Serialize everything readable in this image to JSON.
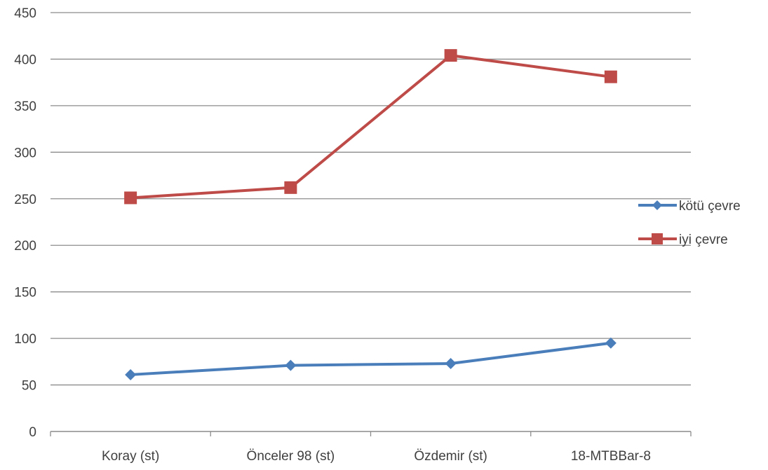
{
  "chart_data": {
    "type": "line",
    "categories": [
      "Koray (st)",
      "Önceler 98 (st)",
      "Özdemir (st)",
      "18-MTBBar-8"
    ],
    "series": [
      {
        "name": "kötü çevre",
        "values": [
          61,
          71,
          73,
          95
        ],
        "color": "#4a7ebb",
        "marker": "diamond"
      },
      {
        "name": "iyi çevre",
        "values": [
          251,
          262,
          404,
          381
        ],
        "color": "#be4b48",
        "marker": "square"
      }
    ],
    "title": "",
    "xlabel": "",
    "ylabel": "",
    "ylim": [
      0,
      450
    ],
    "yticks": [
      0,
      50,
      100,
      150,
      200,
      250,
      300,
      350,
      400,
      450
    ],
    "grid": "horizontal",
    "legend_position": "right"
  }
}
